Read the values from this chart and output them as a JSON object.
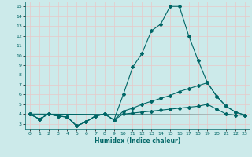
{
  "xlabel": "Humidex (Indice chaleur)",
  "background_color": "#cceaea",
  "grid_color": "#e8c8c8",
  "line_color": "#006666",
  "xlim": [
    -0.5,
    23.5
  ],
  "ylim": [
    2.5,
    15.5
  ],
  "yticks": [
    3,
    4,
    5,
    6,
    7,
    8,
    9,
    10,
    11,
    12,
    13,
    14,
    15
  ],
  "xticks": [
    0,
    1,
    2,
    3,
    4,
    5,
    6,
    7,
    8,
    9,
    10,
    11,
    12,
    13,
    14,
    15,
    16,
    17,
    18,
    19,
    20,
    21,
    22,
    23
  ],
  "line1_x": [
    0,
    1,
    2,
    3,
    4,
    5,
    6,
    7,
    8,
    9,
    10,
    11,
    12,
    13,
    14,
    15,
    16,
    17,
    18,
    19,
    20,
    21,
    22,
    23
  ],
  "line1_y": [
    4.0,
    3.5,
    4.0,
    3.8,
    3.7,
    2.8,
    3.2,
    3.8,
    4.0,
    3.4,
    6.0,
    8.8,
    10.2,
    12.5,
    13.2,
    15.0,
    15.0,
    12.0,
    9.5,
    7.2,
    5.8,
    4.8,
    4.2,
    3.9
  ],
  "line2_x": [
    0,
    1,
    2,
    3,
    4,
    5,
    6,
    7,
    8,
    9,
    10,
    11,
    12,
    13,
    14,
    15,
    16,
    17,
    18,
    19,
    20,
    21,
    22,
    23
  ],
  "line2_y": [
    4.0,
    3.5,
    4.0,
    3.8,
    3.7,
    2.8,
    3.2,
    3.8,
    4.0,
    3.4,
    4.3,
    4.6,
    5.0,
    5.3,
    5.6,
    5.9,
    6.3,
    6.6,
    6.9,
    7.2,
    5.8,
    4.8,
    4.2,
    3.9
  ],
  "line3_x": [
    0,
    1,
    2,
    3,
    4,
    5,
    6,
    7,
    8,
    9,
    10,
    11,
    12,
    13,
    14,
    15,
    16,
    17,
    18,
    19,
    20,
    21,
    22,
    23
  ],
  "line3_y": [
    4.0,
    3.5,
    4.0,
    3.8,
    3.7,
    2.8,
    3.2,
    3.8,
    4.0,
    3.4,
    4.0,
    4.1,
    4.2,
    4.3,
    4.4,
    4.5,
    4.6,
    4.7,
    4.8,
    5.0,
    4.5,
    4.0,
    3.9,
    3.9
  ],
  "line4_x": [
    0,
    23
  ],
  "line4_y": [
    4.0,
    3.9
  ],
  "marker": "D",
  "markersize": 2.0,
  "linewidth": 0.8
}
